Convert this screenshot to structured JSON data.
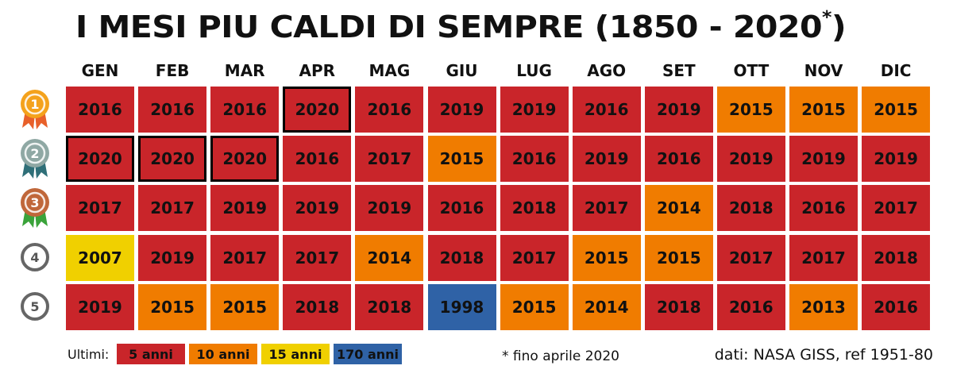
{
  "title_main": "I MESI PIU CALDI DI SEMPRE (1850 - 2020",
  "title_star": "*",
  "title_close": ")",
  "colors": {
    "5": "#c9252a",
    "10": "#f07c00",
    "15": "#f0d000",
    "170": "#2f62a6",
    "medal_gold": "#f4a21c",
    "medal_silver": "#8fa8a4",
    "medal_bronze": "#c0673a"
  },
  "chart_data": {
    "type": "table",
    "months": [
      "GEN",
      "FEB",
      "MAR",
      "APR",
      "MAG",
      "GIU",
      "LUG",
      "AGO",
      "SET",
      "OTT",
      "NOV",
      "DIC"
    ],
    "ranks": [
      "1",
      "2",
      "3",
      "4",
      "5"
    ],
    "rows": [
      [
        "2016",
        "2016",
        "2016",
        "2020",
        "2016",
        "2019",
        "2019",
        "2016",
        "2019",
        "2015",
        "2015",
        "2015"
      ],
      [
        "2020",
        "2020",
        "2020",
        "2016",
        "2017",
        "2015",
        "2016",
        "2019",
        "2016",
        "2019",
        "2019",
        "2019"
      ],
      [
        "2017",
        "2017",
        "2019",
        "2019",
        "2019",
        "2016",
        "2018",
        "2017",
        "2014",
        "2018",
        "2016",
        "2017"
      ],
      [
        "2007",
        "2019",
        "2017",
        "2017",
        "2014",
        "2018",
        "2017",
        "2015",
        "2015",
        "2017",
        "2017",
        "2018"
      ],
      [
        "2019",
        "2015",
        "2015",
        "2018",
        "2018",
        "1998",
        "2015",
        "2014",
        "2018",
        "2016",
        "2013",
        "2016"
      ]
    ],
    "categories": [
      [
        "5",
        "5",
        "5",
        "5",
        "5",
        "5",
        "5",
        "5",
        "5",
        "10",
        "10",
        "10"
      ],
      [
        "5",
        "5",
        "5",
        "5",
        "5",
        "10",
        "5",
        "5",
        "5",
        "5",
        "5",
        "5"
      ],
      [
        "5",
        "5",
        "5",
        "5",
        "5",
        "5",
        "5",
        "5",
        "10",
        "5",
        "5",
        "5"
      ],
      [
        "15",
        "5",
        "5",
        "5",
        "10",
        "5",
        "5",
        "10",
        "10",
        "5",
        "5",
        "5"
      ],
      [
        "5",
        "10",
        "10",
        "5",
        "5",
        "170",
        "10",
        "10",
        "5",
        "5",
        "10",
        "5"
      ]
    ],
    "highlighted": [
      [
        0,
        3
      ],
      [
        1,
        0
      ],
      [
        1,
        1
      ],
      [
        1,
        2
      ]
    ]
  },
  "legend": {
    "label": "Ultimi:",
    "items": [
      {
        "key": "5",
        "text": "5 anni"
      },
      {
        "key": "10",
        "text": "10 anni"
      },
      {
        "key": "15",
        "text": "15 anni"
      },
      {
        "key": "170",
        "text": "170 anni"
      }
    ]
  },
  "footnote": "* fino aprile 2020",
  "source": "dati: NASA GISS, ref 1951-80"
}
